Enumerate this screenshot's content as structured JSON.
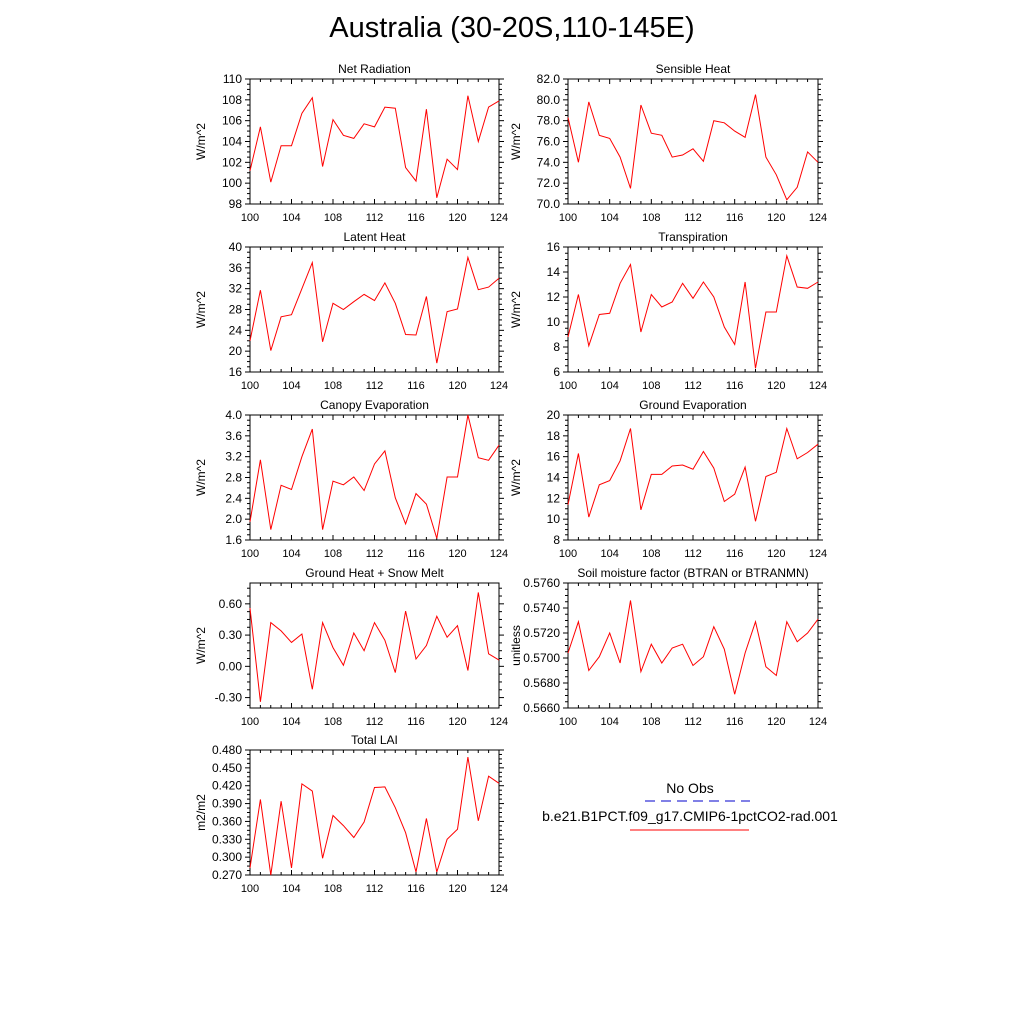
{
  "title": "Australia (30-20S,110-145E)",
  "colors": {
    "model_line": "#ff0000",
    "obs_line": "#0000cc",
    "axis": "#000000"
  },
  "legend": {
    "obs_label": "No Obs",
    "model_label": "b.e21.B1PCT.f09_g17.CMIP6-1pctCO2-rad.001"
  },
  "chart_data": [
    {
      "type": "line",
      "title": "Net Radiation",
      "ylabel": "W/m^2",
      "xlim": [
        100,
        124
      ],
      "ylim": [
        98,
        110
      ],
      "xticks": [
        "100",
        "104",
        "108",
        "112",
        "116",
        "120",
        "124"
      ],
      "yticks": [
        "98",
        "100",
        "102",
        "104",
        "106",
        "108",
        "110"
      ],
      "series": [
        {
          "x": [
            100,
            101,
            102,
            103,
            104,
            105,
            106,
            107,
            108,
            109,
            110,
            111,
            112,
            113,
            114,
            115,
            116,
            117,
            118,
            119,
            120,
            121,
            122,
            123,
            124
          ],
          "values": [
            101.2,
            105.4,
            100.1,
            103.6,
            103.6,
            106.7,
            108.2,
            101.6,
            106.1,
            104.6,
            104.3,
            105.7,
            105.4,
            107.3,
            107.2,
            101.5,
            100.2,
            107.1,
            98.6,
            102.3,
            101.3,
            108.4,
            104.0,
            107.3,
            107.9
          ]
        }
      ]
    },
    {
      "type": "line",
      "title": "Sensible Heat",
      "ylabel": "W/m^2",
      "xlim": [
        100,
        124
      ],
      "ylim": [
        70,
        82
      ],
      "xticks": [
        "100",
        "104",
        "108",
        "112",
        "116",
        "120",
        "124"
      ],
      "yticks": [
        "70.0",
        "72.0",
        "74.0",
        "76.0",
        "78.0",
        "80.0",
        "82.0"
      ],
      "series": [
        {
          "x": [
            100,
            101,
            102,
            103,
            104,
            105,
            106,
            107,
            108,
            109,
            110,
            111,
            112,
            113,
            114,
            115,
            116,
            117,
            118,
            119,
            120,
            121,
            122,
            123,
            124
          ],
          "values": [
            78.3,
            74.0,
            79.8,
            76.6,
            76.3,
            74.5,
            71.5,
            79.5,
            76.8,
            76.6,
            74.5,
            74.7,
            75.3,
            74.1,
            78.0,
            77.8,
            77.0,
            76.4,
            80.5,
            74.5,
            72.8,
            70.4,
            71.6,
            75.0,
            74.0
          ]
        }
      ]
    },
    {
      "type": "line",
      "title": "Latent Heat",
      "ylabel": "W/m^2",
      "xlim": [
        100,
        124
      ],
      "ylim": [
        16,
        40
      ],
      "xticks": [
        "100",
        "104",
        "108",
        "112",
        "116",
        "120",
        "124"
      ],
      "yticks": [
        "16",
        "20",
        "24",
        "28",
        "32",
        "36",
        "40"
      ],
      "series": [
        {
          "x": [
            100,
            101,
            102,
            103,
            104,
            105,
            106,
            107,
            108,
            109,
            110,
            111,
            112,
            113,
            114,
            115,
            116,
            117,
            118,
            119,
            120,
            121,
            122,
            123,
            124
          ],
          "values": [
            22.0,
            31.7,
            20.1,
            26.6,
            27.0,
            32.0,
            37.0,
            21.8,
            29.2,
            28.0,
            29.5,
            30.9,
            29.7,
            33.1,
            29.2,
            23.2,
            23.1,
            30.5,
            17.7,
            27.6,
            28.1,
            38.0,
            31.8,
            32.3,
            34.0
          ]
        }
      ]
    },
    {
      "type": "line",
      "title": "Transpiration",
      "ylabel": "W/m^2",
      "xlim": [
        100,
        124
      ],
      "ylim": [
        6,
        16
      ],
      "xticks": [
        "100",
        "104",
        "108",
        "112",
        "116",
        "120",
        "124"
      ],
      "yticks": [
        "6",
        "8",
        "10",
        "12",
        "14",
        "16"
      ],
      "series": [
        {
          "x": [
            100,
            101,
            102,
            103,
            104,
            105,
            106,
            107,
            108,
            109,
            110,
            111,
            112,
            113,
            114,
            115,
            116,
            117,
            118,
            119,
            120,
            121,
            122,
            123,
            124
          ],
          "values": [
            8.8,
            12.2,
            8.1,
            10.6,
            10.7,
            13.1,
            14.6,
            9.2,
            12.2,
            11.2,
            11.6,
            13.1,
            11.9,
            13.2,
            12.0,
            9.6,
            8.2,
            13.2,
            6.3,
            10.8,
            10.8,
            15.3,
            12.8,
            12.7,
            13.2
          ]
        }
      ]
    },
    {
      "type": "line",
      "title": "Canopy Evaporation",
      "ylabel": "W/m^2",
      "xlim": [
        100,
        124
      ],
      "ylim": [
        1.6,
        4.0
      ],
      "xticks": [
        "100",
        "104",
        "108",
        "112",
        "116",
        "120",
        "124"
      ],
      "yticks": [
        "1.6",
        "2.0",
        "2.4",
        "2.8",
        "3.2",
        "3.6",
        "4.0"
      ],
      "series": [
        {
          "x": [
            100,
            101,
            102,
            103,
            104,
            105,
            106,
            107,
            108,
            109,
            110,
            111,
            112,
            113,
            114,
            115,
            116,
            117,
            118,
            119,
            120,
            121,
            122,
            123,
            124
          ],
          "values": [
            1.95,
            3.14,
            1.8,
            2.65,
            2.57,
            3.2,
            3.73,
            1.8,
            2.73,
            2.66,
            2.81,
            2.55,
            3.06,
            3.31,
            2.41,
            1.91,
            2.49,
            2.29,
            1.63,
            2.81,
            2.81,
            4.0,
            3.18,
            3.13,
            3.42
          ]
        }
      ]
    },
    {
      "type": "line",
      "title": "Ground Evaporation",
      "ylabel": "W/m^2",
      "xlim": [
        100,
        124
      ],
      "ylim": [
        8,
        20
      ],
      "xticks": [
        "100",
        "104",
        "108",
        "112",
        "116",
        "120",
        "124"
      ],
      "yticks": [
        "8",
        "10",
        "12",
        "14",
        "16",
        "18",
        "20"
      ],
      "series": [
        {
          "x": [
            100,
            101,
            102,
            103,
            104,
            105,
            106,
            107,
            108,
            109,
            110,
            111,
            112,
            113,
            114,
            115,
            116,
            117,
            118,
            119,
            120,
            121,
            122,
            123,
            124
          ],
          "values": [
            11.4,
            16.3,
            10.2,
            13.3,
            13.7,
            15.6,
            18.7,
            10.9,
            14.3,
            14.3,
            15.1,
            15.2,
            14.8,
            16.5,
            14.9,
            11.7,
            12.4,
            15.0,
            9.8,
            14.1,
            14.5,
            18.7,
            15.8,
            16.4,
            17.2
          ]
        }
      ]
    },
    {
      "type": "line",
      "title": "Ground Heat + Snow Melt",
      "ylabel": "W/m^2",
      "xlim": [
        100,
        124
      ],
      "ylim": [
        -0.4,
        0.8
      ],
      "xticks": [
        "100",
        "104",
        "108",
        "112",
        "116",
        "120",
        "124"
      ],
      "yticks": [
        "-0.30",
        "0.00",
        "0.30",
        "0.60"
      ],
      "ytick_values": [
        -0.3,
        0.0,
        0.3,
        0.6
      ],
      "series": [
        {
          "x": [
            100,
            101,
            102,
            103,
            104,
            105,
            106,
            107,
            108,
            109,
            110,
            111,
            112,
            113,
            114,
            115,
            116,
            117,
            118,
            119,
            120,
            121,
            122,
            123,
            124
          ],
          "values": [
            0.56,
            -0.34,
            0.42,
            0.34,
            0.23,
            0.31,
            -0.22,
            0.42,
            0.18,
            0.01,
            0.32,
            0.15,
            0.42,
            0.25,
            -0.06,
            0.53,
            0.07,
            0.2,
            0.48,
            0.28,
            0.39,
            -0.04,
            0.71,
            0.12,
            0.06
          ]
        }
      ]
    },
    {
      "type": "line",
      "title": "Soil moisture factor (BTRAN or BTRANMN)",
      "ylabel": "unitless",
      "xlim": [
        100,
        124
      ],
      "ylim": [
        0.566,
        0.576
      ],
      "xticks": [
        "100",
        "104",
        "108",
        "112",
        "116",
        "120",
        "124"
      ],
      "yticks": [
        "0.5660",
        "0.5680",
        "0.5700",
        "0.5720",
        "0.5740",
        "0.5760"
      ],
      "series": [
        {
          "x": [
            100,
            101,
            102,
            103,
            104,
            105,
            106,
            107,
            108,
            109,
            110,
            111,
            112,
            113,
            114,
            115,
            116,
            117,
            118,
            119,
            120,
            121,
            122,
            123,
            124
          ],
          "values": [
            0.5704,
            0.5729,
            0.569,
            0.5701,
            0.572,
            0.5696,
            0.5746,
            0.5689,
            0.5711,
            0.5696,
            0.5708,
            0.5711,
            0.5694,
            0.5701,
            0.5725,
            0.5707,
            0.5671,
            0.5704,
            0.5729,
            0.5693,
            0.5686,
            0.5729,
            0.5713,
            0.572,
            0.5731
          ]
        }
      ]
    },
    {
      "type": "line",
      "title": "Total LAI",
      "ylabel": "m2/m2",
      "xlim": [
        100,
        124
      ],
      "ylim": [
        0.27,
        0.48
      ],
      "xticks": [
        "100",
        "104",
        "108",
        "112",
        "116",
        "120",
        "124"
      ],
      "yticks": [
        "0.270",
        "0.300",
        "0.330",
        "0.360",
        "0.390",
        "0.420",
        "0.450",
        "0.480"
      ],
      "series": [
        {
          "x": [
            100,
            101,
            102,
            103,
            104,
            105,
            106,
            107,
            108,
            109,
            110,
            111,
            112,
            113,
            114,
            115,
            116,
            117,
            118,
            119,
            120,
            121,
            122,
            123,
            124
          ],
          "values": [
            0.282,
            0.397,
            0.27,
            0.394,
            0.282,
            0.423,
            0.411,
            0.298,
            0.37,
            0.353,
            0.333,
            0.359,
            0.417,
            0.418,
            0.383,
            0.341,
            0.275,
            0.365,
            0.275,
            0.33,
            0.347,
            0.468,
            0.361,
            0.436,
            0.424
          ]
        }
      ]
    }
  ]
}
